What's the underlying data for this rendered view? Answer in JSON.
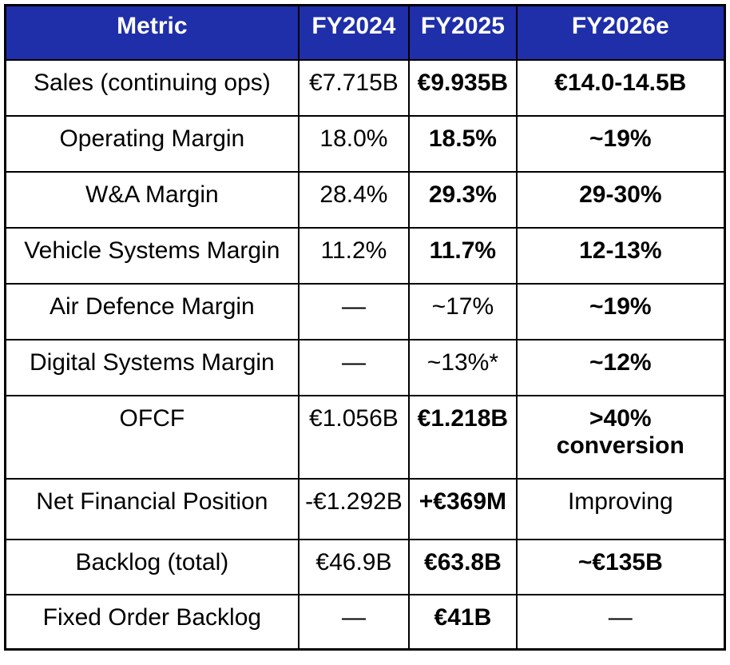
{
  "colors": {
    "header_bg": "#1F2EA9",
    "header_fg": "#ffffff",
    "border": "#000000",
    "cell_bg": "#ffffff",
    "cell_fg": "#000000"
  },
  "table": {
    "columns": [
      "Metric",
      "FY2024",
      "FY2025",
      "FY2026e"
    ],
    "rows": [
      {
        "cells": [
          {
            "text": "Sales (continuing ops)",
            "bold": false
          },
          {
            "text": "€7.715B",
            "bold": false
          },
          {
            "text": "€9.935B",
            "bold": true
          },
          {
            "text": "€14.0-14.5B",
            "bold": true
          }
        ]
      },
      {
        "cells": [
          {
            "text": "Operating Margin",
            "bold": false
          },
          {
            "text": "18.0%",
            "bold": false
          },
          {
            "text": "18.5%",
            "bold": true
          },
          {
            "text": "~19%",
            "bold": true
          }
        ]
      },
      {
        "cells": [
          {
            "text": "W&A Margin",
            "bold": false
          },
          {
            "text": "28.4%",
            "bold": false
          },
          {
            "text": "29.3%",
            "bold": true
          },
          {
            "text": "29-30%",
            "bold": true
          }
        ]
      },
      {
        "cells": [
          {
            "text": "Vehicle Systems Margin",
            "bold": false
          },
          {
            "text": "11.2%",
            "bold": false
          },
          {
            "text": "11.7%",
            "bold": true
          },
          {
            "text": "12-13%",
            "bold": true
          }
        ]
      },
      {
        "cells": [
          {
            "text": "Air Defence Margin",
            "bold": false
          },
          {
            "text": "—",
            "bold": false
          },
          {
            "text": "~17%",
            "bold": false
          },
          {
            "text": "~19%",
            "bold": true
          }
        ]
      },
      {
        "cells": [
          {
            "text": "Digital Systems Margin",
            "bold": false
          },
          {
            "text": "—",
            "bold": false
          },
          {
            "text": "~13%*",
            "bold": false
          },
          {
            "text": "~12%",
            "bold": true
          }
        ]
      },
      {
        "cells": [
          {
            "text": "OFCF",
            "bold": false
          },
          {
            "text": "€1.056B",
            "bold": false
          },
          {
            "text": "€1.218B",
            "bold": true
          },
          {
            "text": ">40%\nconversion",
            "bold": true
          }
        ]
      },
      {
        "cells": [
          {
            "text": "Net Financial Position",
            "bold": false
          },
          {
            "text": "-€1.292B",
            "bold": false
          },
          {
            "text": "+€369M",
            "bold": true
          },
          {
            "text": "Improving",
            "bold": false
          }
        ]
      },
      {
        "cells": [
          {
            "text": "Backlog (total)",
            "bold": false
          },
          {
            "text": "€46.9B",
            "bold": false
          },
          {
            "text": "€63.8B",
            "bold": true
          },
          {
            "text": "~€135B",
            "bold": true
          }
        ]
      },
      {
        "cells": [
          {
            "text": "Fixed Order Backlog",
            "bold": false
          },
          {
            "text": "—",
            "bold": false
          },
          {
            "text": "€41B",
            "bold": true
          },
          {
            "text": "—",
            "bold": false
          }
        ]
      }
    ]
  },
  "chart_data": {
    "type": "table",
    "title": "",
    "columns": [
      "Metric",
      "FY2024",
      "FY2025",
      "FY2026e"
    ],
    "rows": [
      [
        "Sales (continuing ops)",
        "€7.715B",
        "€9.935B",
        "€14.0-14.5B"
      ],
      [
        "Operating Margin",
        "18.0%",
        "18.5%",
        "~19%"
      ],
      [
        "W&A Margin",
        "28.4%",
        "29.3%",
        "29-30%"
      ],
      [
        "Vehicle Systems Margin",
        "11.2%",
        "11.7%",
        "12-13%"
      ],
      [
        "Air Defence Margin",
        "—",
        "~17%",
        "~19%"
      ],
      [
        "Digital Systems Margin",
        "—",
        "~13%*",
        "~12%"
      ],
      [
        "OFCF",
        "€1.056B",
        "€1.218B",
        ">40% conversion"
      ],
      [
        "Net Financial Position",
        "-€1.292B",
        "+€369M",
        "Improving"
      ],
      [
        "Backlog (total)",
        "€46.9B",
        "€63.8B",
        "~€135B"
      ],
      [
        "Fixed Order Backlog",
        "—",
        "€41B",
        "—"
      ]
    ],
    "layout_hints": {
      "header_background": "#1F2EA9",
      "header_text_color": "#ffffff",
      "grid": true,
      "bold_cells": "most FY2025 and FY2026e values are bold for emphasis"
    }
  }
}
